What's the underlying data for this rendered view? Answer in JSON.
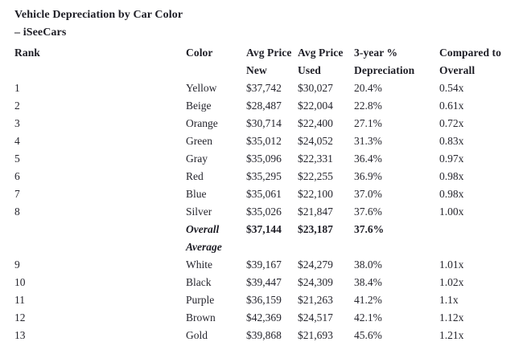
{
  "page": {
    "title_line1": "Vehicle Depreciation by Car Color",
    "title_line2": "– iSeeCars"
  },
  "colors": {
    "background": "#ffffff",
    "text": "#26262e",
    "heading_text": "#1d1d25"
  },
  "table": {
    "headers": [
      {
        "line1": "Rank",
        "line2": ""
      },
      {
        "line1": "Color",
        "line2": ""
      },
      {
        "line1": "Avg Price",
        "line2": "New"
      },
      {
        "line1": "Avg Price",
        "line2": "Used"
      },
      {
        "line1": "3-year %",
        "line2": "Depreciation"
      },
      {
        "line1": "Compared to",
        "line2": "Overall"
      }
    ],
    "rows": [
      {
        "rank": "1",
        "color": "Yellow",
        "price_new": "$37,742",
        "price_used": "$30,027",
        "depreciation": "20.4%",
        "compared": "0.54x",
        "style": "normal"
      },
      {
        "rank": "2",
        "color": "Beige",
        "price_new": "$28,487",
        "price_used": "$22,004",
        "depreciation": "22.8%",
        "compared": "0.61x",
        "style": "normal"
      },
      {
        "rank": "3",
        "color": "Orange",
        "price_new": "$30,714",
        "price_used": "$22,400",
        "depreciation": "27.1%",
        "compared": "0.72x",
        "style": "normal"
      },
      {
        "rank": "4",
        "color": "Green",
        "price_new": "$35,012",
        "price_used": "$24,052",
        "depreciation": "31.3%",
        "compared": "0.83x",
        "style": "normal"
      },
      {
        "rank": "5",
        "color": "Gray",
        "price_new": "$35,096",
        "price_used": "$22,331",
        "depreciation": "36.4%",
        "compared": "0.97x",
        "style": "normal"
      },
      {
        "rank": "6",
        "color": "Red",
        "price_new": "$35,295",
        "price_used": "$22,255",
        "depreciation": "36.9%",
        "compared": "0.98x",
        "style": "normal"
      },
      {
        "rank": "7",
        "color": "Blue",
        "price_new": "$35,061",
        "price_used": "$22,100",
        "depreciation": "37.0%",
        "compared": "0.98x",
        "style": "normal"
      },
      {
        "rank": "8",
        "color": "Silver",
        "price_new": "$35,026",
        "price_used": "$21,847",
        "depreciation": "37.6%",
        "compared": "1.00x",
        "style": "normal"
      },
      {
        "rank": "",
        "color": "Overall Average",
        "price_new": "$37,144",
        "price_used": "$23,187",
        "depreciation": "37.6%",
        "compared": "",
        "style": "overall"
      },
      {
        "rank": "9",
        "color": "White",
        "price_new": "$39,167",
        "price_used": "$24,279",
        "depreciation": "38.0%",
        "compared": "1.01x",
        "style": "normal"
      },
      {
        "rank": "10",
        "color": "Black",
        "price_new": "$39,447",
        "price_used": "$24,309",
        "depreciation": "38.4%",
        "compared": "1.02x",
        "style": "normal"
      },
      {
        "rank": "11",
        "color": "Purple",
        "price_new": "$36,159",
        "price_used": "$21,263",
        "depreciation": "41.2%",
        "compared": "1.1x",
        "style": "normal"
      },
      {
        "rank": "12",
        "color": "Brown",
        "price_new": "$42,369",
        "price_used": "$24,517",
        "depreciation": "42.1%",
        "compared": "1.12x",
        "style": "normal"
      },
      {
        "rank": "13",
        "color": "Gold",
        "price_new": "$39,868",
        "price_used": "$21,693",
        "depreciation": "45.6%",
        "compared": "1.21x",
        "style": "normal"
      }
    ]
  }
}
